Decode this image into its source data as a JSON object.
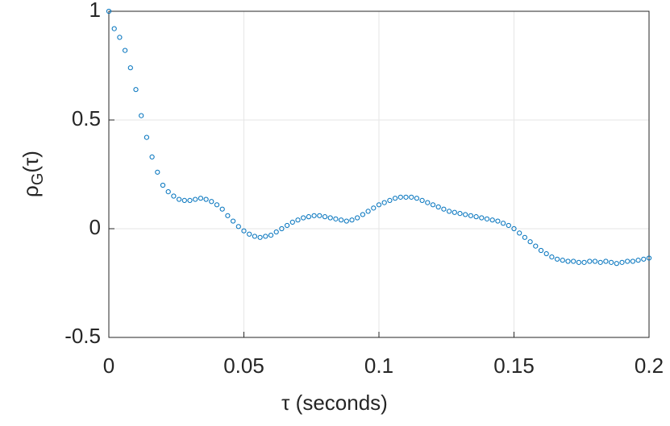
{
  "chart_data": {
    "type": "scatter",
    "xlabel": "τ (seconds)",
    "ylabel": [
      "ρ",
      "G",
      "(τ)"
    ],
    "xlim": [
      0,
      0.2
    ],
    "ylim": [
      -0.5,
      1
    ],
    "xticks": [
      0,
      0.05,
      0.1,
      0.15,
      0.2
    ],
    "yticks": [
      -0.5,
      0,
      0.5,
      1
    ],
    "grid": true,
    "color": "#0072BD",
    "x": [
      0,
      0.002,
      0.004,
      0.006,
      0.008,
      0.01,
      0.012,
      0.014,
      0.016,
      0.018,
      0.02,
      0.022,
      0.024,
      0.026,
      0.028,
      0.03,
      0.032,
      0.034,
      0.036,
      0.038,
      0.04,
      0.042,
      0.044,
      0.046,
      0.048,
      0.05,
      0.052,
      0.054,
      0.056,
      0.058,
      0.06,
      0.062,
      0.064,
      0.066,
      0.068,
      0.07,
      0.072,
      0.074,
      0.076,
      0.078,
      0.08,
      0.082,
      0.084,
      0.086,
      0.088,
      0.09,
      0.092,
      0.094,
      0.096,
      0.098,
      0.1,
      0.102,
      0.104,
      0.106,
      0.108,
      0.11,
      0.112,
      0.114,
      0.116,
      0.118,
      0.12,
      0.122,
      0.124,
      0.126,
      0.128,
      0.13,
      0.132,
      0.134,
      0.136,
      0.138,
      0.14,
      0.142,
      0.144,
      0.146,
      0.148,
      0.15,
      0.152,
      0.154,
      0.156,
      0.158,
      0.16,
      0.162,
      0.164,
      0.166,
      0.168,
      0.17,
      0.172,
      0.174,
      0.176,
      0.178,
      0.18,
      0.182,
      0.184,
      0.186,
      0.188,
      0.19,
      0.192,
      0.194,
      0.196,
      0.198,
      0.2
    ],
    "values": [
      1.0,
      0.92,
      0.88,
      0.82,
      0.74,
      0.64,
      0.52,
      0.42,
      0.33,
      0.26,
      0.2,
      0.17,
      0.15,
      0.135,
      0.13,
      0.13,
      0.135,
      0.14,
      0.135,
      0.125,
      0.11,
      0.09,
      0.06,
      0.035,
      0.01,
      -0.01,
      -0.025,
      -0.035,
      -0.04,
      -0.035,
      -0.03,
      -0.015,
      0.0,
      0.015,
      0.03,
      0.04,
      0.05,
      0.055,
      0.06,
      0.06,
      0.055,
      0.05,
      0.045,
      0.04,
      0.035,
      0.04,
      0.05,
      0.065,
      0.08,
      0.095,
      0.11,
      0.12,
      0.13,
      0.14,
      0.145,
      0.145,
      0.145,
      0.14,
      0.13,
      0.12,
      0.11,
      0.1,
      0.09,
      0.08,
      0.075,
      0.07,
      0.065,
      0.06,
      0.055,
      0.05,
      0.045,
      0.04,
      0.035,
      0.025,
      0.015,
      0.0,
      -0.02,
      -0.04,
      -0.06,
      -0.08,
      -0.1,
      -0.115,
      -0.13,
      -0.14,
      -0.145,
      -0.15,
      -0.15,
      -0.155,
      -0.155,
      -0.15,
      -0.15,
      -0.155,
      -0.15,
      -0.155,
      -0.16,
      -0.155,
      -0.15,
      -0.15,
      -0.145,
      -0.14,
      -0.135
    ]
  }
}
